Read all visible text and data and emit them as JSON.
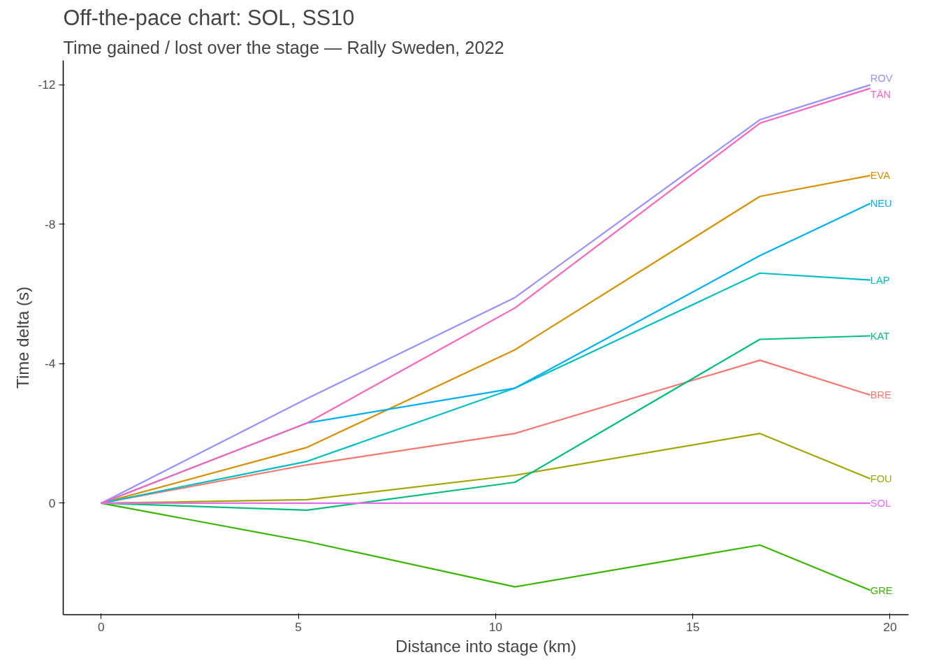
{
  "chart_data": {
    "type": "line",
    "title": "Off-the-pace chart: SOL, SS10",
    "subtitle": "Time gained / lost over the stage — Rally Sweden, 2022",
    "xlabel": "Distance into stage (km)",
    "ylabel": "Time delta (s)",
    "x": [
      0,
      5.22,
      10.49,
      16.7,
      19.5
    ],
    "xlim": [
      -0.96,
      20.47
    ],
    "xticks": [
      0,
      5,
      10,
      15,
      20
    ],
    "ylim": [
      3.2,
      -12.7
    ],
    "yticks": [
      -12,
      -8,
      -4,
      0
    ],
    "grid": false,
    "legend": false,
    "marker": "none",
    "line_style": "solid",
    "series": [
      {
        "name": "BRE",
        "color": "#f8766d",
        "values": [
          0,
          -1.1,
          -2.0,
          -4.1,
          -3.1
        ]
      },
      {
        "name": "EVA",
        "color": "#d89000",
        "values": [
          0,
          -1.6,
          -4.4,
          -8.8,
          -9.4
        ]
      },
      {
        "name": "FOU",
        "color": "#a3a500",
        "values": [
          0,
          -0.1,
          -0.8,
          -2.0,
          -0.7
        ]
      },
      {
        "name": "GRE",
        "color": "#39b600",
        "values": [
          0,
          1.1,
          2.4,
          1.2,
          2.5
        ]
      },
      {
        "name": "KAT",
        "color": "#00bf7d",
        "values": [
          0,
          0.2,
          -0.6,
          -4.7,
          -4.8
        ]
      },
      {
        "name": "LAP",
        "color": "#00bfc4",
        "values": [
          0,
          -1.2,
          -3.3,
          -6.6,
          -6.4
        ]
      },
      {
        "name": "NEU",
        "color": "#00b0f6",
        "values": [
          0,
          -2.3,
          -3.3,
          -7.1,
          -8.6
        ]
      },
      {
        "name": "ROV",
        "color": "#9590ff",
        "values": [
          0,
          -3.0,
          -5.9,
          -11.0,
          -12.0
        ]
      },
      {
        "name": "SOL",
        "color": "#e76bf3",
        "values": [
          0,
          0,
          0,
          0,
          0
        ]
      },
      {
        "name": "TÄN",
        "color": "#ff62bc",
        "values": [
          0,
          -2.3,
          -5.6,
          -10.9,
          -11.9
        ]
      }
    ]
  }
}
